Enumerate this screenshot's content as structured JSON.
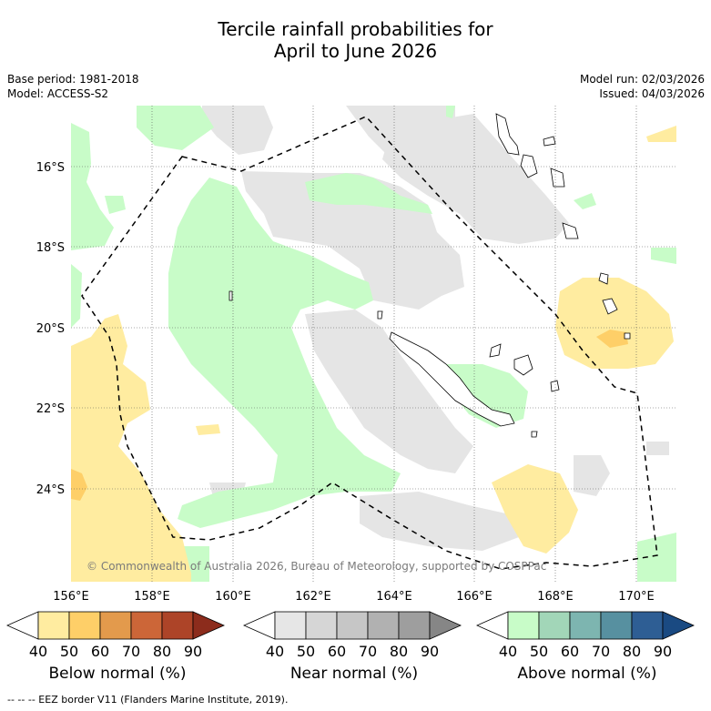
{
  "title": {
    "line1": "Tercile rainfall probabilities for",
    "line2": "April to June 2026"
  },
  "meta": {
    "base_period": "Base period: 1981-2018",
    "model": "Model: ACCESS-S2",
    "model_run": "Model run: 02/03/2026",
    "issued": "Issued: 04/03/2026"
  },
  "map": {
    "lon_range": [
      155,
      171
    ],
    "lat_range": [
      -26.3,
      -14.7
    ],
    "lon_ticks": [
      "156°E",
      "158°E",
      "160°E",
      "162°E",
      "164°E",
      "166°E",
      "168°E",
      "170°E"
    ],
    "lat_ticks": [
      "16°S",
      "18°S",
      "20°S",
      "22°S",
      "24°S"
    ],
    "grid": true,
    "copyright": "© Commonwealth of Australia 2026, Bureau of Meteorology, supported by COSPPac"
  },
  "colorbars": [
    {
      "name": "below",
      "title": "Below normal (%)",
      "ticks": [
        "40",
        "50",
        "60",
        "70",
        "80",
        "90"
      ],
      "colors": [
        "#ffffff",
        "#ffeca0",
        "#fecf68",
        "#e39a4c",
        "#cc6638",
        "#ad4428",
        "#8c2c1c"
      ]
    },
    {
      "name": "near",
      "title": "Near normal (%)",
      "ticks": [
        "40",
        "50",
        "60",
        "70",
        "80",
        "90"
      ],
      "colors": [
        "#ffffff",
        "#e6e6e6",
        "#d6d6d6",
        "#c6c6c6",
        "#b1b1b1",
        "#9e9e9e",
        "#868686"
      ]
    },
    {
      "name": "above",
      "title": "Above normal (%)",
      "ticks": [
        "40",
        "50",
        "60",
        "70",
        "80",
        "90"
      ],
      "colors": [
        "#ffffff",
        "#c8fcc8",
        "#a2d6b8",
        "#7db5b0",
        "#5790a0",
        "#2e5e94",
        "#1a4a82"
      ]
    }
  ],
  "legend": {
    "eez_line": "--  --  -- EEZ border V11 (Flanders Marine Institute, 2019)."
  }
}
